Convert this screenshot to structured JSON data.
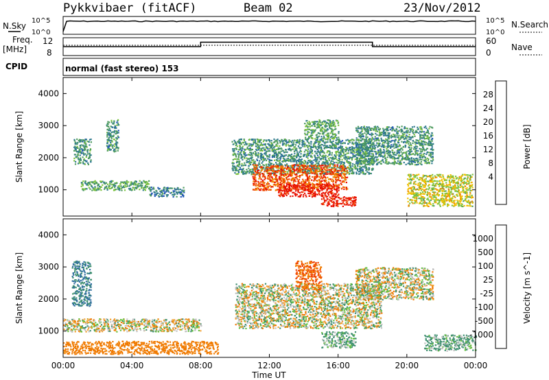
{
  "header": {
    "station": "Pykkvibaer (fitACF)",
    "beam": "Beam 02",
    "date": "23/Nov/2012"
  },
  "left_labels": {
    "nsky": "N.Sky",
    "nsky_hi": "10^5",
    "nsky_lo": "10^0",
    "freq": "Freq.",
    "freq_unit": "[MHz]",
    "freq_hi": "12",
    "freq_lo": "8",
    "cpid": "CPID"
  },
  "right_labels": {
    "nsearch": "N.Search",
    "nsearch_hi": "10^5",
    "nsearch_lo": "10^0",
    "nave": "Nave",
    "nave_hi": "60",
    "nave_lo": "0"
  },
  "cpid_text": "normal (fast stereo) 153",
  "x_axis": {
    "ticks": [
      "00:00",
      "04:00",
      "08:00",
      "12:00",
      "16:00",
      "20:00",
      "00:00"
    ],
    "label": "Time UT"
  },
  "power_panel": {
    "ylabel": "Slant Range [km]",
    "yticks": [
      "1000",
      "2000",
      "3000",
      "4000"
    ],
    "colorbar_label": "Power [dB]",
    "colorbar_ticks": [
      "4",
      "8",
      "12",
      "16",
      "20",
      "24",
      "28"
    ],
    "colors": [
      "#1e2ee0",
      "#2255b8",
      "#2f7a8e",
      "#4c9a5e",
      "#7cc23e",
      "#f0c000",
      "#f08a00",
      "#f04a00",
      "#e81000"
    ]
  },
  "velocity_panel": {
    "ylabel": "Slant Range [km]",
    "yticks": [
      "1000",
      "2000",
      "3000",
      "4000"
    ],
    "colorbar_label": "Velocity [m s^-1]",
    "colorbar_ticks": [
      "1000",
      "500",
      "100",
      "25",
      "-25",
      "-100",
      "-500",
      "-1000"
    ],
    "colors": [
      "#1e3cc8",
      "#2f6e9e",
      "#3f9070",
      "#66c040",
      "#c0c0c0",
      "#f0a030",
      "#f07a00",
      "#f04000",
      "#e01010"
    ]
  },
  "chart_data": {
    "type": "heatmap",
    "xlabel": "Time UT",
    "ylabel": "Slant Range [km]",
    "xlim": [
      0,
      24
    ],
    "ylim": [
      180,
      4500
    ],
    "freq_mhz_segments": [
      {
        "from": 0,
        "to": 8,
        "value": 10
      },
      {
        "from": 8,
        "to": 18,
        "value": 11
      },
      {
        "from": 18,
        "to": 24,
        "value": 10
      }
    ],
    "power_regions": [
      {
        "t": [
          0.6,
          1.6
        ],
        "r": [
          1800,
          2600
        ],
        "db": 10
      },
      {
        "t": [
          1.0,
          5.0
        ],
        "r": [
          1000,
          1300
        ],
        "db": 12
      },
      {
        "t": [
          2.5,
          3.2
        ],
        "r": [
          2200,
          3200
        ],
        "db": 10
      },
      {
        "t": [
          5.0,
          7.0
        ],
        "r": [
          800,
          1100
        ],
        "db": 8
      },
      {
        "t": [
          9.8,
          18.0
        ],
        "r": [
          1500,
          2600
        ],
        "db": 10
      },
      {
        "t": [
          11.0,
          16.5
        ],
        "r": [
          1000,
          1800
        ],
        "db": 24
      },
      {
        "t": [
          12.5,
          16.0
        ],
        "r": [
          800,
          1200
        ],
        "db": 28
      },
      {
        "t": [
          15.0,
          17.0
        ],
        "r": [
          500,
          800
        ],
        "db": 28
      },
      {
        "t": [
          14.0,
          16.0
        ],
        "r": [
          2600,
          3200
        ],
        "db": 12
      },
      {
        "t": [
          17.0,
          21.5
        ],
        "r": [
          1800,
          3000
        ],
        "db": 10
      },
      {
        "t": [
          20.0,
          23.8
        ],
        "r": [
          500,
          1500
        ],
        "db": 16
      }
    ],
    "velocity_regions": [
      {
        "t": [
          0.5,
          1.6
        ],
        "r": [
          1800,
          3200
        ],
        "v": 300
      },
      {
        "t": [
          0.0,
          8.0
        ],
        "r": [
          1000,
          1400
        ],
        "v": 0
      },
      {
        "t": [
          0.0,
          9.0
        ],
        "r": [
          300,
          700
        ],
        "v": -150
      },
      {
        "t": [
          10.0,
          18.5
        ],
        "r": [
          1100,
          2500
        ],
        "v": 0
      },
      {
        "t": [
          13.5,
          15.0
        ],
        "r": [
          2300,
          3200
        ],
        "v": -300
      },
      {
        "t": [
          15.0,
          17.0
        ],
        "r": [
          500,
          1000
        ],
        "v": 80
      },
      {
        "t": [
          17.0,
          21.5
        ],
        "r": [
          2000,
          3000
        ],
        "v": 0
      },
      {
        "t": [
          21.0,
          24.0
        ],
        "r": [
          400,
          900
        ],
        "v": 80
      }
    ]
  }
}
